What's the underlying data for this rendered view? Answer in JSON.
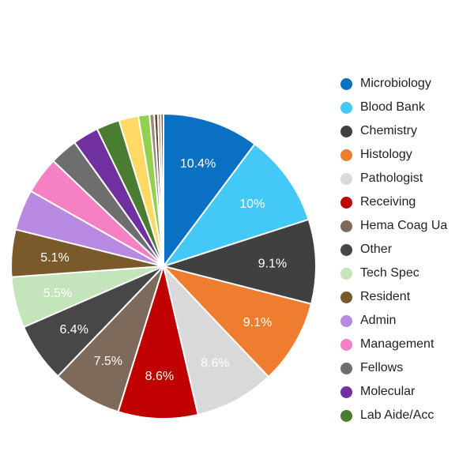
{
  "chart_data": {
    "type": "pie",
    "title": "",
    "slices": [
      {
        "name": "Microbiology",
        "value": 10.4,
        "label": "10.4%",
        "color": "#0a70c4"
      },
      {
        "name": "Blood Bank",
        "value": 10.0,
        "label": "10%",
        "color": "#44c8f8"
      },
      {
        "name": "Chemistry",
        "value": 9.1,
        "label": "9.1%",
        "color": "#404040"
      },
      {
        "name": "Histology",
        "value": 9.1,
        "label": "9.1%",
        "color": "#ef7d30"
      },
      {
        "name": "Pathologist",
        "value": 8.6,
        "label": "8.6%",
        "color": "#d9d9d9"
      },
      {
        "name": "Receiving",
        "value": 8.6,
        "label": "8.6%",
        "color": "#c00000"
      },
      {
        "name": "Hema Coag Ua",
        "value": 7.5,
        "label": "7.5%",
        "color": "#7e6a5a"
      },
      {
        "name": "Other",
        "value": 6.4,
        "label": "6.4%",
        "color": "#474747"
      },
      {
        "name": "Tech Spec",
        "value": 5.5,
        "label": "5.5%",
        "color": "#c4e4bc"
      },
      {
        "name": "Resident",
        "value": 5.1,
        "label": "5.1%",
        "color": "#7a5a2a"
      },
      {
        "name": "Admin",
        "value": 4.4,
        "label": "",
        "color": "#b889e0"
      },
      {
        "name": "Management",
        "value": 4.0,
        "label": "",
        "color": "#f580c4"
      },
      {
        "name": "Fellows",
        "value": 3.0,
        "label": "",
        "color": "#6e6e6e"
      },
      {
        "name": "Molecular",
        "value": 2.8,
        "label": "",
        "color": "#7030a0"
      },
      {
        "name": "Lab Aide/Acc",
        "value": 2.5,
        "label": "",
        "color": "#4a7d32"
      },
      {
        "name": "",
        "value": 2.1,
        "label": "",
        "color": "#ffd966"
      },
      {
        "name": "",
        "value": 1.2,
        "label": "",
        "color": "#92d050"
      },
      {
        "name": "",
        "value": 0.5,
        "label": "",
        "color": "#9e8878"
      },
      {
        "name": "",
        "value": 0.4,
        "label": "",
        "color": "#5c4a3a"
      },
      {
        "name": "",
        "value": 0.3,
        "label": "",
        "color": "#a67f5a"
      },
      {
        "name": "",
        "value": 0.3,
        "label": "",
        "color": "#c0392b"
      }
    ],
    "legend": {
      "position": "right",
      "items": [
        {
          "name": "Microbiology",
          "color": "#0a70c4"
        },
        {
          "name": "Blood Bank",
          "color": "#44c8f8"
        },
        {
          "name": "Chemistry",
          "color": "#404040"
        },
        {
          "name": "Histology",
          "color": "#ef7d30"
        },
        {
          "name": "Pathologist",
          "color": "#d9d9d9"
        },
        {
          "name": "Receiving",
          "color": "#c00000"
        },
        {
          "name": "Hema Coag Ua",
          "color": "#7e6a5a"
        },
        {
          "name": "Other",
          "color": "#474747"
        },
        {
          "name": "Tech Spec",
          "color": "#c4e4bc"
        },
        {
          "name": "Resident",
          "color": "#7a5a2a"
        },
        {
          "name": "Admin",
          "color": "#b889e0"
        },
        {
          "name": "Management",
          "color": "#f580c4"
        },
        {
          "name": "Fellows",
          "color": "#6e6e6e"
        },
        {
          "name": "Molecular",
          "color": "#7030a0"
        },
        {
          "name": "Lab Aide/Acc",
          "color": "#4a7d32"
        }
      ]
    },
    "slice_border_color": "#ffffff"
  }
}
